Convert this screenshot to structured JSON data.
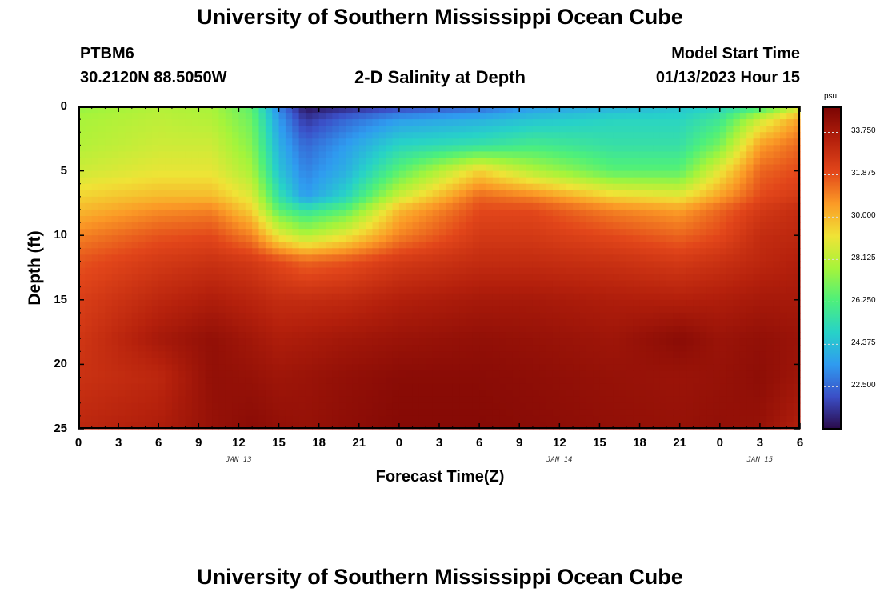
{
  "header": {
    "title": "University of Southern Mississippi Ocean Cube",
    "station": "PTBM6",
    "coords": "30.2120N  88.5050W",
    "plot_title": "2-D Salinity at Depth",
    "model_label": "Model Start Time",
    "model_time": "01/13/2023 Hour 15"
  },
  "footer": {
    "title": "University of Southern Mississippi Ocean Cube"
  },
  "colors": {
    "colormap": [
      "#2a0a4a",
      "#3b4fc7",
      "#2f9bf0",
      "#27d2c8",
      "#4ef07a",
      "#a6f43a",
      "#f0e336",
      "#fb9a26",
      "#e2461a",
      "#b4200c",
      "#7a0403"
    ]
  },
  "chart_data": {
    "type": "heatmap",
    "xlabel": "Forecast Time(Z)",
    "ylabel": "Depth (ft)",
    "x_tick_labels": [
      "0",
      "3",
      "6",
      "9",
      "12",
      "15",
      "18",
      "21",
      "0",
      "3",
      "6",
      "9",
      "12",
      "15",
      "18",
      "21",
      "0",
      "3",
      "6"
    ],
    "x_hours": [
      0,
      3,
      6,
      9,
      12,
      15,
      18,
      21,
      24,
      27,
      30,
      33,
      36,
      39,
      42,
      45,
      48,
      51,
      54
    ],
    "xlim": [
      0,
      54
    ],
    "date_labels": [
      {
        "text": "JAN 13",
        "hour": 12
      },
      {
        "text": "JAN 14",
        "hour": 36
      },
      {
        "text": "JAN 15",
        "hour": 51
      }
    ],
    "y_tick_labels": [
      "0",
      "5",
      "10",
      "15",
      "20",
      "25"
    ],
    "y_depths": [
      0,
      5,
      10,
      15,
      20,
      25
    ],
    "ylim": [
      0,
      25
    ],
    "colorbar": {
      "unit": "psu",
      "ticks": [
        "33.750",
        "31.875",
        "30.000",
        "28.125",
        "26.250",
        "24.375",
        "22.500"
      ],
      "tick_values": [
        33.75,
        31.875,
        30.0,
        28.125,
        26.25,
        24.375,
        22.5
      ],
      "range": [
        20.6,
        34.9
      ]
    },
    "grid_hours": [
      0,
      6,
      10,
      13,
      15,
      17,
      20,
      24,
      30,
      34,
      40,
      45,
      48,
      51,
      54
    ],
    "grid_depths": [
      0,
      1,
      3,
      5,
      7,
      8,
      10,
      12,
      15,
      18,
      21,
      25
    ],
    "salinity": [
      [
        27.5,
        28.0,
        27.8,
        26.5,
        23.0,
        20.8,
        21.2,
        21.8,
        22.5,
        23.5,
        24.0,
        24.5,
        25.0,
        26.0,
        28.5
      ],
      [
        27.8,
        28.2,
        28.0,
        26.8,
        23.5,
        21.5,
        22.5,
        23.5,
        24.0,
        24.5,
        25.0,
        25.0,
        25.8,
        28.5,
        30.5
      ],
      [
        28.0,
        28.5,
        28.5,
        27.2,
        24.0,
        22.5,
        23.5,
        25.0,
        25.5,
        26.0,
        25.5,
        25.5,
        27.0,
        30.5,
        31.5
      ],
      [
        28.5,
        29.0,
        29.0,
        27.8,
        24.5,
        23.0,
        24.0,
        26.5,
        29.5,
        28.0,
        26.5,
        26.5,
        29.0,
        31.5,
        32.0
      ],
      [
        29.5,
        30.0,
        30.0,
        28.8,
        25.5,
        23.5,
        25.0,
        28.5,
        31.5,
        31.0,
        29.5,
        29.0,
        30.5,
        32.0,
        32.5
      ],
      [
        30.0,
        30.8,
        31.0,
        29.5,
        26.5,
        25.5,
        26.5,
        30.0,
        32.0,
        32.0,
        31.0,
        30.5,
        31.5,
        32.5,
        33.0
      ],
      [
        31.0,
        31.8,
        32.0,
        31.0,
        29.0,
        28.0,
        29.0,
        31.0,
        32.5,
        32.5,
        32.0,
        31.5,
        32.0,
        33.0,
        33.2
      ],
      [
        31.8,
        32.5,
        32.8,
        32.5,
        32.0,
        31.5,
        31.8,
        32.5,
        33.0,
        33.0,
        32.8,
        32.5,
        32.8,
        33.2,
        33.5
      ],
      [
        32.3,
        33.2,
        33.6,
        33.3,
        33.0,
        33.0,
        33.1,
        33.5,
        33.8,
        33.8,
        33.6,
        33.5,
        33.6,
        33.8,
        33.8
      ],
      [
        32.6,
        33.8,
        34.3,
        33.9,
        33.6,
        33.7,
        33.9,
        34.1,
        34.3,
        34.2,
        34.0,
        34.5,
        34.1,
        34.3,
        34.1
      ],
      [
        32.8,
        33.2,
        34.3,
        34.2,
        34.0,
        34.1,
        34.3,
        34.5,
        34.5,
        34.4,
        34.2,
        34.1,
        34.2,
        34.4,
        34.0
      ],
      [
        33.2,
        33.6,
        34.2,
        34.5,
        34.3,
        34.2,
        34.4,
        34.6,
        34.6,
        34.5,
        34.3,
        34.2,
        34.3,
        34.2,
        33.5
      ]
    ]
  }
}
